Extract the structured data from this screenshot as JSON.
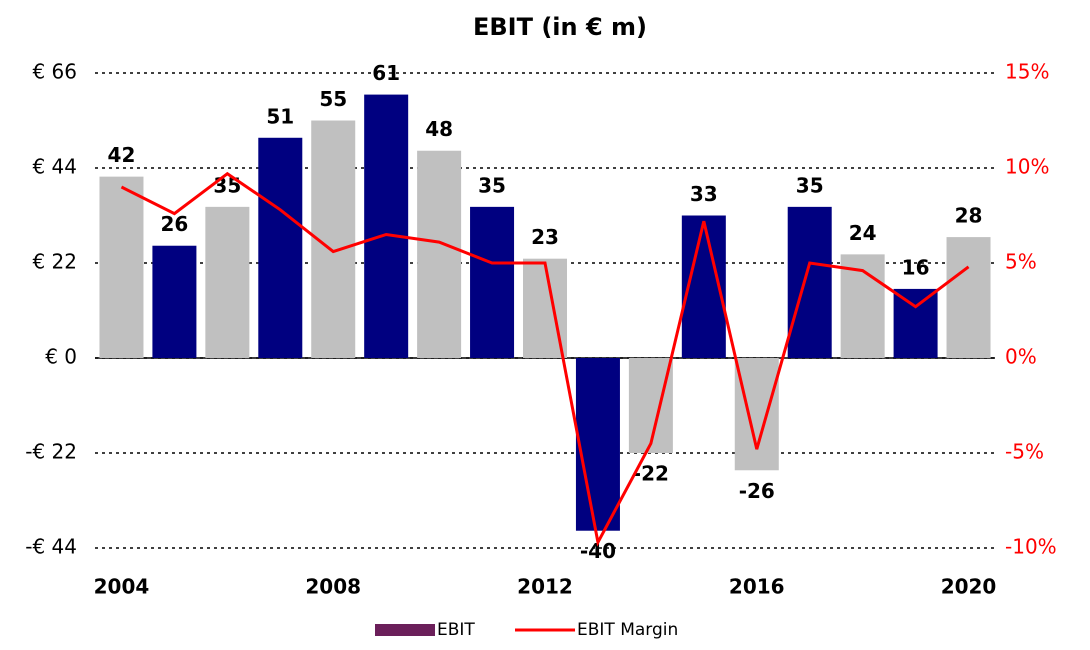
{
  "chart_data": {
    "type": "bar-line",
    "title": "EBIT (in € m)",
    "categories": [
      "2004",
      null,
      null,
      null,
      "2008",
      null,
      null,
      null,
      "2012",
      null,
      null,
      null,
      "2016",
      null,
      null,
      null,
      "2020"
    ],
    "series": [
      {
        "name": "EBIT",
        "color": "#6b1f5a",
        "type": "bar",
        "bar_colors": [
          "#c0c0c0",
          "#000080",
          "#c0c0c0",
          "#000080",
          "#c0c0c0",
          "#000080",
          "#c0c0c0",
          "#000080",
          "#c0c0c0",
          "#000080",
          "#c0c0c0",
          "#000080",
          "#c0c0c0",
          "#000080",
          "#c0c0c0",
          "#000080",
          "#c0c0c0"
        ],
        "values": [
          42,
          26,
          35,
          51,
          55,
          61,
          48,
          35,
          23,
          -40,
          -22,
          33,
          -26,
          35,
          24,
          16,
          28
        ]
      },
      {
        "name": "EBIT Margin",
        "color": "#ff0000",
        "type": "line",
        "axis": "y2",
        "values": [
          9.0,
          7.6,
          9.7,
          7.8,
          5.6,
          6.5,
          6.1,
          5.0,
          5.0,
          -9.7,
          -4.5,
          7.2,
          -4.8,
          5.0,
          4.6,
          2.7,
          4.8
        ]
      }
    ],
    "ylim": [
      -44,
      66
    ],
    "yticks": [
      {
        "value": -44,
        "label": "-€ 44"
      },
      {
        "value": -22,
        "label": "-€ 22"
      },
      {
        "value": 0,
        "label": "€ 0"
      },
      {
        "value": 22,
        "label": "€ 22"
      },
      {
        "value": 44,
        "label": "€ 44"
      },
      {
        "value": 66,
        "label": "€ 66"
      }
    ],
    "y2lim": [
      -10,
      15
    ],
    "y2ticks": [
      {
        "value": -10,
        "label": "-10%"
      },
      {
        "value": -5,
        "label": "-5%"
      },
      {
        "value": 0,
        "label": "0%"
      },
      {
        "value": 5,
        "label": "5%"
      },
      {
        "value": 10,
        "label": "10%"
      },
      {
        "value": 15,
        "label": "15%"
      }
    ],
    "y2color": "#ff0000",
    "grid": true,
    "legend": "bottom"
  }
}
